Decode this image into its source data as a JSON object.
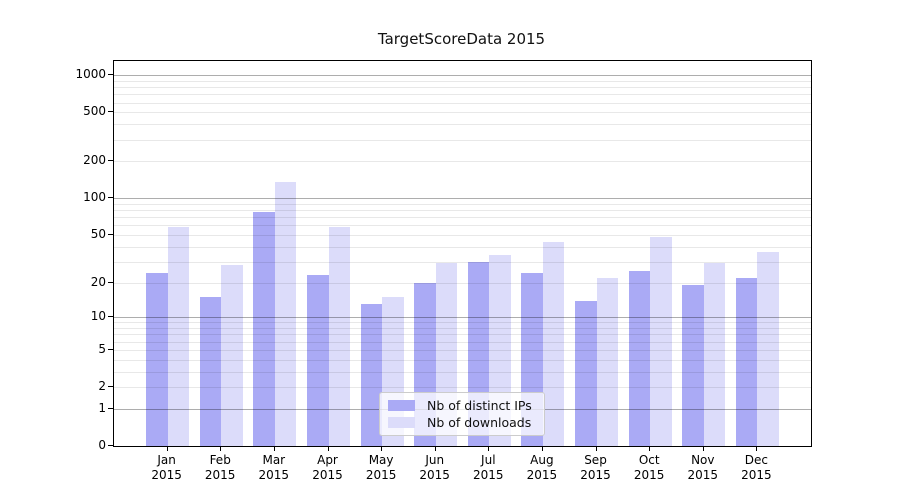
{
  "title": "TargetScoreData 2015",
  "colors": {
    "ips_bar": "#aaaaf5",
    "downloads_bar": "#dcdcfa",
    "major_grid": "rgba(0,0,0,0.32)",
    "minor_grid": "rgba(0,0,0,0.09)",
    "axis": "#000000",
    "legend_border": "#cccccc"
  },
  "legend": {
    "items": [
      {
        "label": "Nb of distinct IPs",
        "color_key": "ips_bar"
      },
      {
        "label": "Nb of downloads",
        "color_key": "downloads_bar"
      }
    ],
    "position": "lower center"
  },
  "y_axis": {
    "tick_labels": [
      "1000",
      "500",
      "200",
      "100",
      "50",
      "20",
      "10",
      "5",
      "2",
      "1",
      "0"
    ],
    "tick_values": [
      1000,
      500,
      200,
      100,
      50,
      20,
      10,
      5,
      2,
      1,
      0
    ],
    "major_grid_values": [
      1,
      10,
      100,
      1000
    ],
    "minor_grid_values": [
      2,
      3,
      4,
      5,
      6,
      7,
      8,
      9,
      20,
      30,
      40,
      50,
      60,
      70,
      80,
      90,
      200,
      300,
      400,
      500,
      600,
      700,
      800,
      900
    ]
  },
  "x_axis": {
    "months": [
      "Jan",
      "Feb",
      "Mar",
      "Apr",
      "May",
      "Jun",
      "Jul",
      "Aug",
      "Sep",
      "Oct",
      "Nov",
      "Dec"
    ],
    "year": "2015"
  },
  "chart_data": {
    "type": "bar",
    "title": "TargetScoreData 2015",
    "scale": "log10(value+1)",
    "categories": [
      "Jan 2015",
      "Feb 2015",
      "Mar 2015",
      "Apr 2015",
      "May 2015",
      "Jun 2015",
      "Jul 2015",
      "Aug 2015",
      "Sep 2015",
      "Oct 2015",
      "Nov 2015",
      "Dec 2015"
    ],
    "series": [
      {
        "name": "Nb of distinct IPs",
        "values": [
          24,
          15,
          77,
          23,
          13,
          20,
          30,
          24,
          14,
          25,
          19,
          22
        ]
      },
      {
        "name": "Nb of downloads",
        "values": [
          58,
          28,
          135,
          58,
          15,
          29,
          34,
          44,
          22,
          48,
          29,
          36
        ]
      }
    ],
    "ylim": [
      0,
      1300
    ],
    "grid": true,
    "legend_position": "lower center"
  }
}
